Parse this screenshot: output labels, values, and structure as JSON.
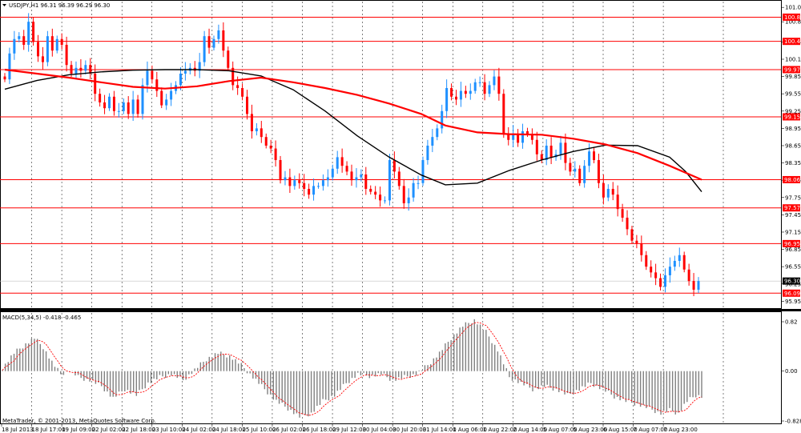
{
  "header": {
    "symbol_text": "USDJPY,H1  96.31 96.39 96.29 96.30",
    "menu_icon": "triangle-down-icon"
  },
  "macd": {
    "label": "MACD(5,34,5) -0.418 -0.465"
  },
  "footer": {
    "copyright": "MetaTrader, © 2001-2013, MetaQuotes Software Corp."
  },
  "colors": {
    "bull": "#1e90ff",
    "bear": "#ff0000",
    "ma_fast": "#000000",
    "ma_slow": "#ff0000",
    "level_line": "#ff0000",
    "level_label_bg": "#ff0000",
    "current_price_bg": "#000000",
    "grid": "#000000",
    "macd_hist": "#808080",
    "macd_signal": "#ff0000"
  },
  "chart_data": [
    {
      "type": "candlestick",
      "symbol": "USDJPY",
      "timeframe": "H1",
      "ohlc_current": {
        "open": 96.31,
        "high": 96.39,
        "low": 96.29,
        "close": 96.3
      },
      "ylim": [
        95.83,
        101.15
      ],
      "y_ticks": [
        "101.05",
        "100.80",
        "100.45",
        "100.15",
        "99.85",
        "99.55",
        "99.25",
        "98.95",
        "98.65",
        "98.35",
        "98.05",
        "97.75",
        "97.45",
        "97.15",
        "96.85",
        "96.55",
        "96.25",
        "95.95"
      ],
      "x_ticks": [
        "18 Jul 2013",
        "18 Jul 17:00",
        "19 Jul 09:00",
        "22 Jul 02:00",
        "22 Jul 18:00",
        "23 Jul 10:00",
        "24 Jul 02:00",
        "24 Jul 18:00",
        "25 Jul 10:00",
        "26 Jul 02:00",
        "26 Jul 18:00",
        "29 Jul 12:00",
        "30 Jul 04:00",
        "30 Jul 20:00",
        "31 Jul 14:00",
        "1 Aug 06:00",
        "1 Aug 22:00",
        "2 Aug 14:00",
        "5 Aug 07:00",
        "5 Aug 23:00",
        "6 Aug 15:00",
        "7 Aug 07:00",
        "7 Aug 23:00"
      ],
      "price_levels": [
        "100.88",
        "100.46",
        "99.97",
        "99.15",
        "98.06",
        "97.57",
        "96.95",
        "96.09"
      ],
      "current_price_label": "96.30",
      "series": [
        {
          "name": "",
          "kind": "moving_average",
          "color": "#000000",
          "points": [
            [
              0,
              99.63
            ],
            [
              4,
              99.78
            ],
            [
              8,
              99.88
            ],
            [
              12,
              99.93
            ],
            [
              16,
              99.96
            ],
            [
              20,
              99.97
            ],
            [
              24,
              99.97
            ],
            [
              28,
              99.95
            ],
            [
              32,
              99.86
            ],
            [
              36,
              99.62
            ],
            [
              40,
              99.25
            ],
            [
              44,
              98.82
            ],
            [
              48,
              98.45
            ],
            [
              52,
              98.14
            ],
            [
              55,
              97.97
            ],
            [
              59,
              98.0
            ],
            [
              63,
              98.22
            ],
            [
              67,
              98.4
            ],
            [
              71,
              98.55
            ],
            [
              75,
              98.66
            ],
            [
              79,
              98.65
            ],
            [
              83,
              98.45
            ],
            [
              85,
              98.2
            ],
            [
              87,
              97.85
            ]
          ]
        },
        {
          "name": "",
          "kind": "moving_average",
          "color": "#ff0000",
          "points": [
            [
              0,
              99.97
            ],
            [
              4,
              99.9
            ],
            [
              8,
              99.83
            ],
            [
              12,
              99.75
            ],
            [
              16,
              99.67
            ],
            [
              20,
              99.64
            ],
            [
              24,
              99.68
            ],
            [
              28,
              99.77
            ],
            [
              32,
              99.83
            ],
            [
              36,
              99.75
            ],
            [
              40,
              99.65
            ],
            [
              44,
              99.53
            ],
            [
              48,
              99.38
            ],
            [
              52,
              99.2
            ],
            [
              55,
              99.0
            ],
            [
              59,
              98.88
            ],
            [
              63,
              98.85
            ],
            [
              67,
              98.84
            ],
            [
              71,
              98.77
            ],
            [
              75,
              98.67
            ],
            [
              79,
              98.52
            ],
            [
              83,
              98.3
            ],
            [
              87,
              98.06
            ]
          ]
        }
      ],
      "closes": [
        99.8,
        100.25,
        100.5,
        100.55,
        100.4,
        100.8,
        100.45,
        100.2,
        100.1,
        100.55,
        100.3,
        100.5,
        100.4,
        100.05,
        99.9,
        100.0,
        99.95,
        100.05,
        99.9,
        99.55,
        99.4,
        99.3,
        99.5,
        99.25,
        99.25,
        99.4,
        99.2,
        99.45,
        99.2,
        99.7,
        99.95,
        99.8,
        99.6,
        99.35,
        99.45,
        99.6,
        99.7,
        99.9,
        99.95,
        100.0,
        99.95,
        100.1,
        100.55,
        100.35,
        100.5,
        100.65,
        100.3,
        100.0,
        99.7,
        99.65,
        99.5,
        99.2,
        98.9,
        98.95,
        98.8,
        98.65,
        98.6,
        98.4,
        98.05,
        98.1,
        97.95,
        98.05,
        98.0,
        97.9,
        97.8,
        97.95,
        97.95,
        98.05,
        98.1,
        98.25,
        98.45,
        98.3,
        98.2,
        98.05,
        98.1,
        98.15,
        97.9,
        97.85,
        97.8,
        97.7,
        97.7,
        98.4,
        98.2,
        97.95,
        97.65,
        97.75,
        98.0,
        98.0,
        98.4,
        98.65,
        98.8,
        98.95,
        99.25,
        99.65,
        99.5,
        99.45,
        99.6,
        99.55,
        99.6,
        99.75,
        99.75,
        99.55,
        99.7,
        99.85,
        99.55,
        98.85,
        98.75,
        98.85,
        98.7,
        98.9,
        98.85,
        98.75,
        98.5,
        98.4,
        98.65,
        98.45,
        98.5,
        98.7,
        98.35,
        98.2,
        98.25,
        98.0,
        98.3,
        98.55,
        98.4,
        98.0,
        97.75,
        97.9,
        97.8,
        97.55,
        97.4,
        97.2,
        97.0,
        96.95,
        96.75,
        96.55,
        96.45,
        96.35,
        96.2,
        96.4,
        96.55,
        96.65,
        96.75,
        96.5,
        96.3,
        96.15,
        96.3
      ]
    },
    {
      "type": "bar",
      "indicator": "MACD",
      "params": [
        5,
        34,
        5
      ],
      "main_value": -0.418,
      "signal_value": -0.465,
      "ylim": [
        -0.828,
        0.82
      ],
      "y_ticks": [
        "0.82",
        "0.00",
        "-0.828"
      ],
      "hist_points": [
        [
          0,
          0.05
        ],
        [
          4,
          0.3
        ],
        [
          8,
          0.45
        ],
        [
          11,
          0.55
        ],
        [
          14,
          0.4
        ],
        [
          17,
          0.15
        ],
        [
          20,
          -0.05
        ],
        [
          23,
          0.02
        ],
        [
          26,
          -0.1
        ],
        [
          30,
          -0.15
        ],
        [
          34,
          -0.25
        ],
        [
          38,
          -0.45
        ],
        [
          42,
          -0.3
        ],
        [
          46,
          -0.4
        ],
        [
          50,
          -0.2
        ],
        [
          54,
          -0.1
        ],
        [
          58,
          -0.05
        ],
        [
          62,
          -0.15
        ],
        [
          66,
          0.02
        ],
        [
          70,
          0.2
        ],
        [
          74,
          0.3
        ],
        [
          78,
          0.25
        ],
        [
          82,
          0.1
        ],
        [
          86,
          -0.1
        ],
        [
          90,
          -0.3
        ],
        [
          94,
          -0.5
        ],
        [
          98,
          -0.62
        ],
        [
          102,
          -0.76
        ],
        [
          106,
          -0.7
        ],
        [
          110,
          -0.5
        ],
        [
          114,
          -0.4
        ],
        [
          118,
          -0.2
        ],
        [
          122,
          -0.05
        ],
        [
          126,
          -0.08
        ],
        [
          130,
          -0.05
        ],
        [
          134,
          -0.15
        ],
        [
          138,
          -0.1
        ],
        [
          142,
          -0.05
        ],
        [
          146,
          0.1
        ],
        [
          150,
          0.3
        ],
        [
          154,
          0.55
        ],
        [
          158,
          0.75
        ],
        [
          162,
          0.85
        ],
        [
          166,
          0.65
        ],
        [
          170,
          0.35
        ],
        [
          174,
          -0.1
        ],
        [
          178,
          -0.2
        ],
        [
          182,
          -0.3
        ],
        [
          186,
          -0.25
        ],
        [
          190,
          -0.3
        ],
        [
          194,
          -0.4
        ],
        [
          198,
          -0.3
        ],
        [
          202,
          -0.2
        ],
        [
          206,
          -0.3
        ],
        [
          210,
          -0.42
        ],
        [
          214,
          -0.5
        ],
        [
          218,
          -0.55
        ],
        [
          222,
          -0.62
        ],
        [
          226,
          -0.7
        ],
        [
          229,
          -0.65
        ],
        [
          232,
          -0.7
        ],
        [
          235,
          -0.5
        ],
        [
          238,
          -0.4
        ],
        [
          240,
          -0.42
        ]
      ]
    }
  ]
}
